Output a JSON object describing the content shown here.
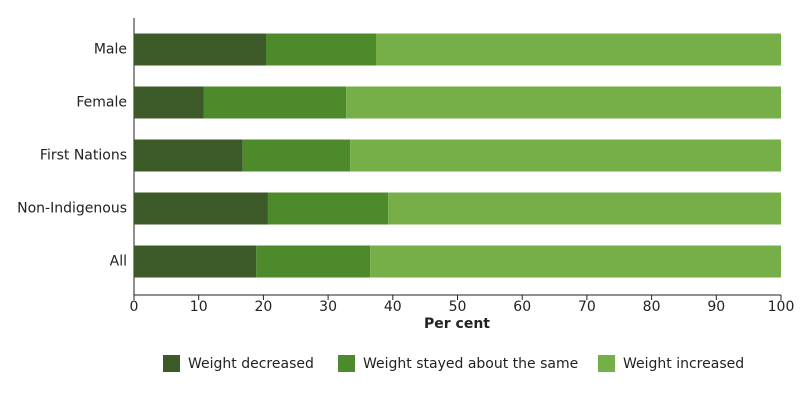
{
  "chart_data": {
    "type": "bar",
    "orientation": "horizontal",
    "stacked": true,
    "xlabel": "Per cent",
    "categories": [
      "Male",
      "Female",
      "First Nations",
      "Non-Indigenous",
      "All"
    ],
    "series": [
      {
        "name": "Weight decreased",
        "color": "#3b5a27",
        "values": [
          20.4,
          10.8,
          16.8,
          20.7,
          18.9
        ]
      },
      {
        "name": "Weight stayed about the same",
        "color": "#4c8a2b",
        "values": [
          17.0,
          22.0,
          16.6,
          18.6,
          17.6
        ]
      },
      {
        "name": "Weight increased",
        "color": "#76ae48",
        "values": [
          62.6,
          67.2,
          66.6,
          60.7,
          63.5
        ]
      }
    ],
    "xlim": [
      0,
      100
    ],
    "xticks": [
      0,
      10,
      20,
      30,
      40,
      50,
      60,
      70,
      80,
      90,
      100
    ],
    "grid": false,
    "legend": "bottom"
  }
}
